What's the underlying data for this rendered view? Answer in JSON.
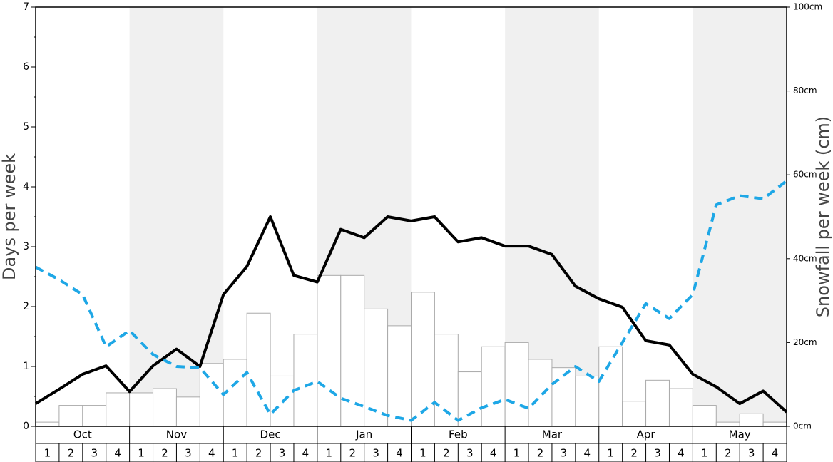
{
  "chart_data": {
    "type": "bar-line",
    "y_label": "Days per week",
    "y2_label": "Snowfall per week (cm)",
    "months": [
      "Oct",
      "Nov",
      "Dec",
      "Jan",
      "Feb",
      "Mar",
      "Apr",
      "May"
    ],
    "categories": [
      "1",
      "2",
      "3",
      "4",
      "1",
      "2",
      "3",
      "4",
      "1",
      "2",
      "3",
      "4",
      "1",
      "2",
      "3",
      "4",
      "1",
      "2",
      "3",
      "4",
      "1",
      "2",
      "3",
      "4",
      "1",
      "2",
      "3",
      "4",
      "1",
      "2",
      "3",
      "4"
    ],
    "ylim": [
      0,
      7
    ],
    "yticks": [
      0,
      1,
      2,
      3,
      4,
      5,
      6,
      7
    ],
    "y2lim": [
      0,
      100
    ],
    "y2ticks": [
      {
        "value": 0,
        "label": "0cm"
      },
      {
        "value": 20,
        "label": "20cm"
      },
      {
        "value": 40,
        "label": "40cm"
      },
      {
        "value": 60,
        "label": "60cm"
      },
      {
        "value": 80,
        "label": "80cm"
      },
      {
        "value": 100,
        "label": "100cm"
      }
    ],
    "bars": {
      "axis": "y2",
      "color": "#ffffff",
      "values": [
        1,
        5,
        5,
        8,
        8,
        9,
        7,
        15,
        16,
        27,
        12,
        22,
        36,
        36,
        28,
        24,
        32,
        22,
        13,
        19,
        20,
        16,
        14,
        12,
        19,
        6,
        11,
        9,
        5,
        1,
        3,
        1
      ]
    },
    "series": [
      {
        "color": "#000000",
        "dashed": false,
        "x": [
          0,
          1,
          2,
          3,
          4,
          5,
          6,
          7,
          8,
          9,
          10,
          11,
          12,
          13,
          14,
          15,
          16,
          17,
          18,
          19,
          20,
          21,
          22,
          23,
          24,
          25,
          26,
          27,
          28,
          29,
          30,
          31,
          32
        ],
        "values": [
          0.38,
          0.62,
          0.87,
          1.01,
          0.58,
          1.01,
          1.29,
          1.0,
          2.2,
          2.67,
          3.5,
          2.52,
          2.41,
          3.29,
          3.15,
          3.5,
          3.43,
          3.5,
          3.08,
          3.15,
          3.01,
          3.01,
          2.87,
          2.34,
          2.13,
          1.99,
          1.43,
          1.36,
          0.87,
          0.66,
          0.38,
          0.59,
          0.24
        ]
      },
      {
        "color": "#1ea7e6",
        "dashed": true,
        "x": [
          0,
          1,
          2,
          3,
          4,
          5,
          6,
          7,
          8,
          9,
          10,
          11,
          12,
          13,
          14,
          15,
          16,
          17,
          18,
          19,
          20,
          21,
          22,
          23,
          24,
          25,
          26,
          27,
          28,
          29,
          30,
          31,
          32
        ],
        "values": [
          2.66,
          2.45,
          2.2,
          1.33,
          1.6,
          1.2,
          1.0,
          0.98,
          0.53,
          0.9,
          0.2,
          0.6,
          0.75,
          0.47,
          0.33,
          0.18,
          0.1,
          0.4,
          0.1,
          0.31,
          0.45,
          0.3,
          0.7,
          1.0,
          0.75,
          1.4,
          2.05,
          1.8,
          2.2,
          3.7,
          3.85,
          3.8,
          4.1
        ]
      }
    ]
  }
}
